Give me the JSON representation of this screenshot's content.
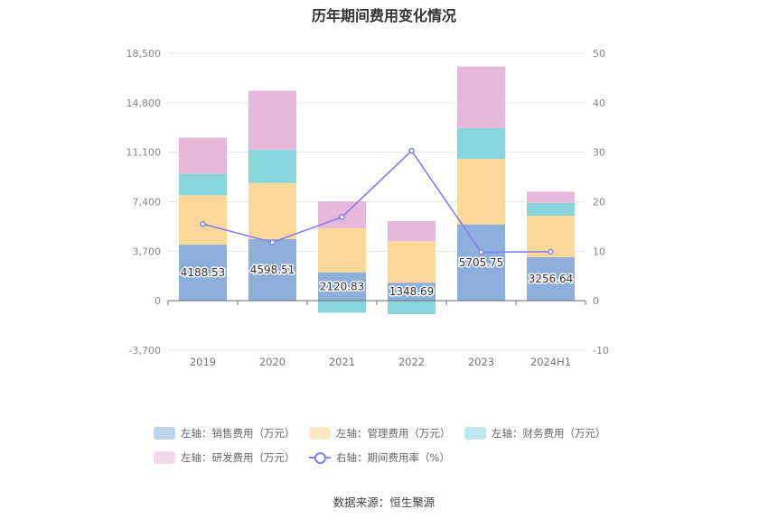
{
  "title": "历年期间费用变化情况",
  "source": "数据来源：恒生聚源",
  "chart_data": {
    "type": "bar",
    "stacked": true,
    "categories": [
      "2019",
      "2020",
      "2021",
      "2022",
      "2023",
      "2024H1"
    ],
    "y_left": {
      "ticks": [
        "18,500",
        "14,800",
        "11,100",
        "7,400",
        "3,700",
        "0",
        "-3,700"
      ],
      "ylim": [
        -3700,
        18500
      ]
    },
    "y_right": {
      "ticks": [
        "50",
        "40",
        "30",
        "20",
        "10",
        "0",
        "-10"
      ],
      "ylim": [
        -10,
        50
      ]
    },
    "grid": true,
    "legend_position": "bottom",
    "series": [
      {
        "name": "左轴：销售费用（万元）",
        "axis": "left",
        "color": "#8eaedc",
        "values": [
          4188.53,
          4598.51,
          2120.83,
          1348.69,
          5705.75,
          3256.64
        ],
        "labels": [
          "4188.53",
          "4598.51",
          "2120.83",
          "1348.69",
          "5705.75",
          "3256.64"
        ]
      },
      {
        "name": "左轴：管理费用（万元）",
        "axis": "left",
        "color": "#fdd898",
        "values": [
          3700,
          4200,
          3300,
          3100,
          4900,
          3100
        ]
      },
      {
        "name": "左轴：财务费用（万元）",
        "axis": "left",
        "color": "#88d6db",
        "values": [
          1600,
          2500,
          -900,
          -1000,
          2300,
          950
        ]
      },
      {
        "name": "左轴：研发费用（万元）",
        "axis": "left",
        "color": "#e8b8da",
        "values": [
          2700,
          4400,
          2000,
          1500,
          4600,
          850
        ]
      },
      {
        "name": "右轴：期间费用率（%）",
        "axis": "right",
        "type": "line",
        "color": "#7f7ff5",
        "values": [
          15.5,
          11.8,
          16.9,
          30.3,
          9.8,
          9.9
        ]
      }
    ]
  }
}
